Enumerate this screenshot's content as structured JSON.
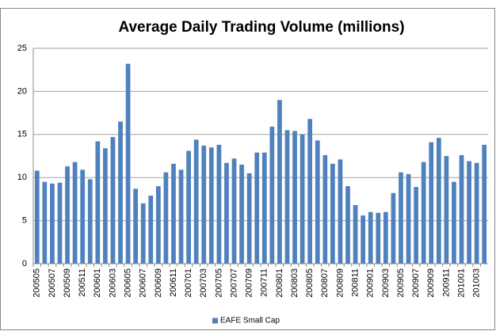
{
  "chart_data": {
    "type": "bar",
    "title": "Average Daily Trading Volume (millions)",
    "categories": [
      "200505",
      null,
      "200507",
      null,
      "200509",
      null,
      "200511",
      null,
      "200601",
      null,
      "200603",
      null,
      "200605",
      null,
      "200607",
      null,
      "200609",
      null,
      "200611",
      null,
      "200701",
      null,
      "200703",
      null,
      "200705",
      null,
      "200707",
      null,
      "200709",
      null,
      "200711",
      null,
      "200801",
      null,
      "200803",
      null,
      "200805",
      null,
      "200807",
      null,
      "200809",
      null,
      "200811",
      null,
      "200901",
      null,
      "200903",
      null,
      "200905",
      null,
      "200907",
      null,
      "200909",
      null,
      "200911",
      null,
      "201001",
      null,
      "201003",
      null
    ],
    "series": [
      {
        "name": "EAFE Small Cap",
        "color": "#4f81bd",
        "values": [
          10.8,
          9.5,
          9.3,
          9.4,
          11.3,
          11.8,
          10.9,
          9.8,
          14.2,
          13.4,
          14.7,
          16.5,
          23.2,
          8.7,
          7.0,
          7.9,
          9.0,
          10.6,
          11.6,
          10.9,
          13.1,
          14.4,
          13.7,
          13.5,
          13.8,
          11.7,
          12.2,
          11.5,
          10.5,
          12.9,
          12.9,
          15.9,
          19.0,
          15.5,
          15.4,
          15.0,
          16.8,
          14.3,
          12.6,
          11.6,
          12.1,
          9.0,
          6.8,
          5.6,
          6.0,
          5.9,
          6.0,
          8.2,
          10.6,
          10.4,
          8.9,
          11.8,
          14.1,
          14.6,
          12.5,
          9.5,
          12.6,
          11.9,
          11.7,
          13.8
        ]
      }
    ],
    "ylim": [
      0,
      25
    ],
    "yticks": [
      0,
      5,
      10,
      15,
      20,
      25
    ],
    "grid": true,
    "legend": "bottom"
  }
}
